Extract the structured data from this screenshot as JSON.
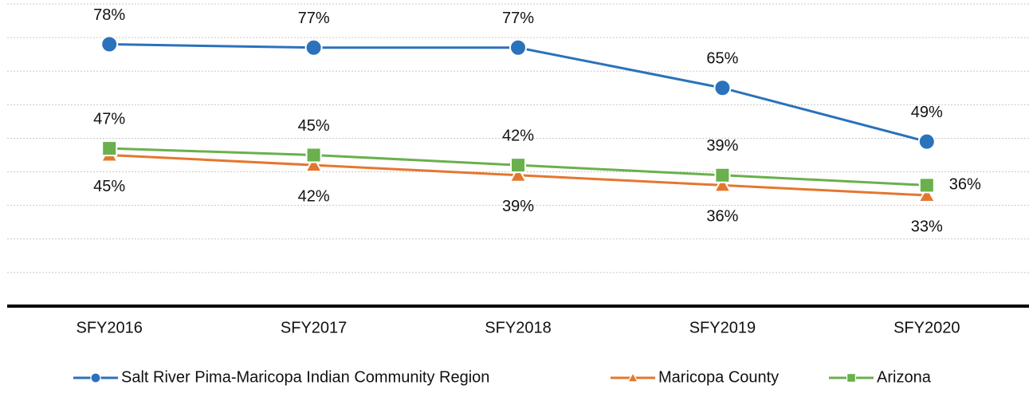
{
  "chart_data": {
    "type": "line",
    "categories": [
      "SFY2016",
      "SFY2017",
      "SFY2018",
      "SFY2019",
      "SFY2020"
    ],
    "series": [
      {
        "name": "Salt River Pima-Maricopa Indian Community Region",
        "color": "#2a72bb",
        "marker": "circle",
        "values": [
          78,
          77,
          77,
          65,
          49
        ],
        "value_labels": [
          "78%",
          "77%",
          "77%",
          "65%",
          "49%"
        ]
      },
      {
        "name": "Maricopa County",
        "color": "#e4772e",
        "marker": "triangle",
        "values": [
          45,
          42,
          39,
          36,
          33
        ],
        "value_labels": [
          "45%",
          "42%",
          "39%",
          "36%",
          "33%"
        ]
      },
      {
        "name": "Arizona",
        "color": "#6ab04c",
        "marker": "square",
        "values": [
          47,
          45,
          42,
          39,
          36
        ],
        "value_labels": [
          "47%",
          "45%",
          "42%",
          "39%",
          "36%"
        ]
      }
    ],
    "ylim": [
      0,
      90
    ],
    "yticks": [
      10,
      20,
      30,
      40,
      50,
      60,
      70,
      80,
      90
    ],
    "grid": true,
    "legend": "bottom"
  }
}
